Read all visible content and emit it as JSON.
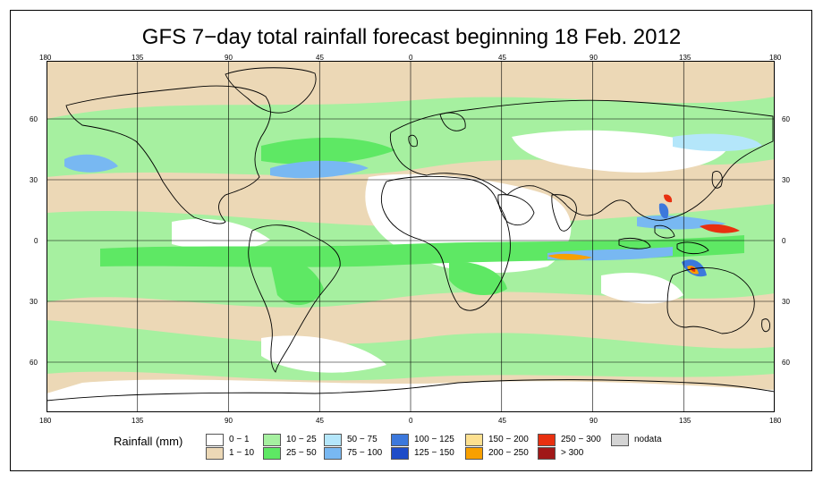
{
  "title": "GFS 7−day total rainfall forecast beginning 18 Feb. 2012",
  "x_ticks": [
    "180",
    "135",
    "90",
    "45",
    "0",
    "45",
    "90",
    "135",
    "180"
  ],
  "y_ticks": [
    "60",
    "30",
    "0",
    "30",
    "60"
  ],
  "legend": {
    "title": "Rainfall (mm)",
    "items": [
      {
        "label": "0 − 1",
        "color": "#ffffff"
      },
      {
        "label": "1 − 10",
        "color": "#ecd8b6"
      },
      {
        "label": "10 − 25",
        "color": "#a6f0a0"
      },
      {
        "label": "25 − 50",
        "color": "#5ee864"
      },
      {
        "label": "50 − 75",
        "color": "#b4e6fa"
      },
      {
        "label": "75 − 100",
        "color": "#78b8f2"
      },
      {
        "label": "100 − 125",
        "color": "#3c78dc"
      },
      {
        "label": "125 − 150",
        "color": "#1e4cc8"
      },
      {
        "label": "150 − 200",
        "color": "#fde090"
      },
      {
        "label": "200 − 250",
        "color": "#f8a000"
      },
      {
        "label": "250 − 300",
        "color": "#e83010"
      },
      {
        "label": "> 300",
        "color": "#a01818"
      },
      {
        "label": "nodata",
        "color": "#d4d4d4"
      }
    ]
  }
}
